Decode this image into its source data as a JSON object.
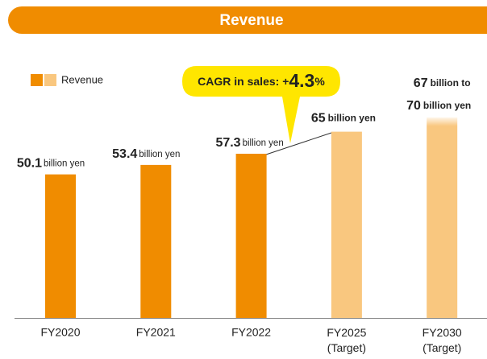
{
  "chart_data": {
    "type": "bar",
    "title": "Revenue",
    "categories": [
      "FY2020",
      "FY2021",
      "FY2022",
      "FY2025 (Target)",
      "FY2030 (Target)"
    ],
    "values": [
      50.1,
      53.4,
      57.3,
      65,
      70
    ],
    "fy2030_low": 67,
    "unit": "billion yen",
    "range_unit": "billion to",
    "legend_label": "Revenue",
    "color": "#f08c00",
    "target_color": "#f9c77f",
    "target_from": 3,
    "ylim": [
      0,
      100
    ],
    "annotation": {
      "text": "CAGR in sales: +",
      "value": 4.3,
      "unit": "%"
    }
  }
}
